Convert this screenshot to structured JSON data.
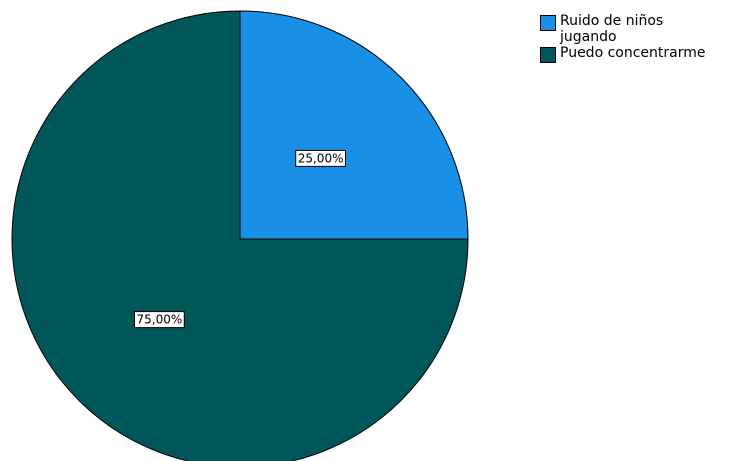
{
  "chart_data": {
    "type": "pie",
    "slices": [
      {
        "name": "Ruido de niños jugando",
        "value": 25.0,
        "label": "25,00%",
        "color": "#1a8fe6"
      },
      {
        "name": "Puedo concentrarme",
        "value": 75.0,
        "label": "75,00%",
        "color": "#00575a"
      }
    ],
    "start_angle_deg": 0,
    "direction": "clockwise",
    "legend_position": "top-right",
    "title": ""
  }
}
